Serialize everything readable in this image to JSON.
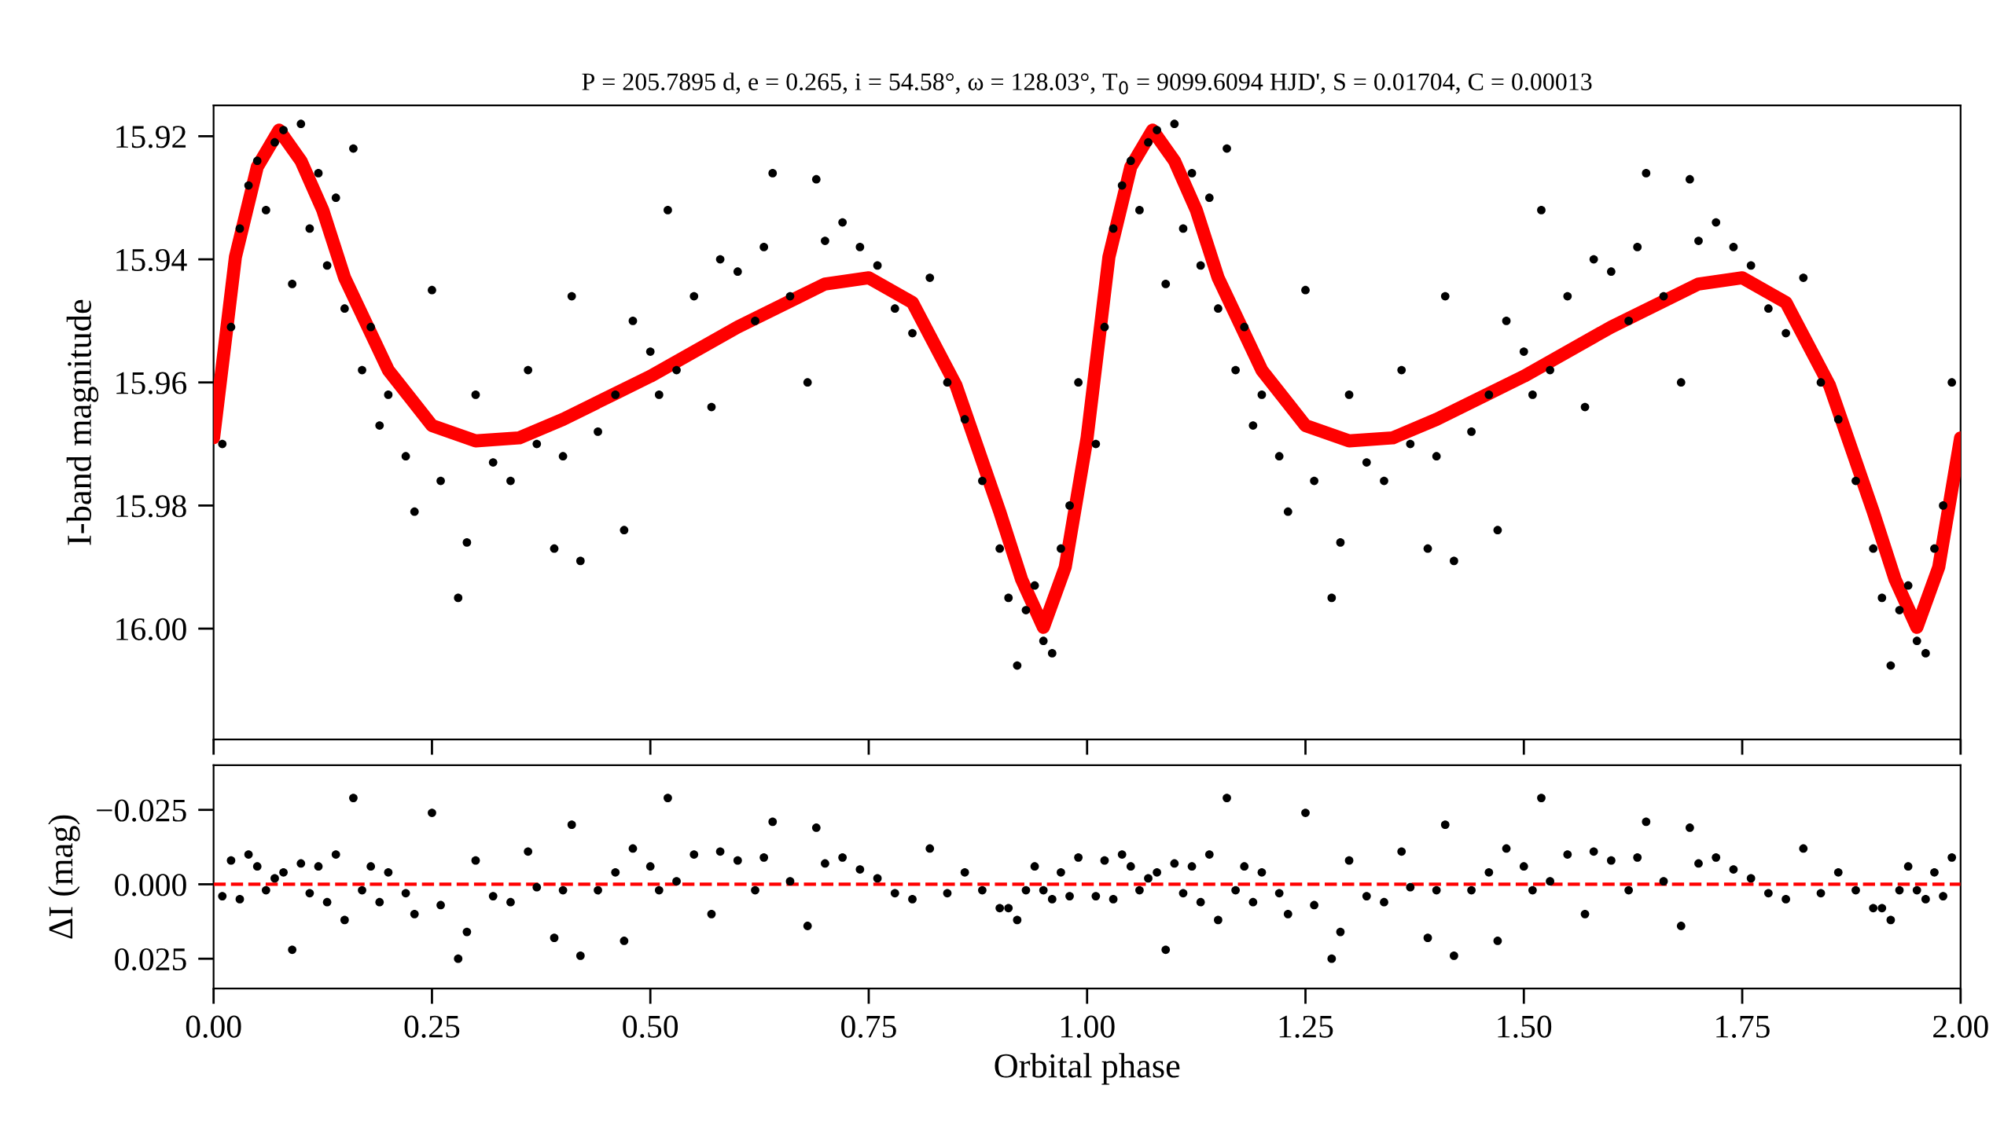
{
  "chart_data": [
    {
      "type": "scatter",
      "title": "P = 205.7895 d, e = 0.265, i = 54.58°, ω = 128.03°, T$_{0}$ = 9099.6094 HJD', S = 0.01704, C = 0.00013",
      "ylabel": "I-band magnitude",
      "tick_labels": "y",
      "xlim": [
        0,
        2
      ],
      "xticks": [
        0,
        0.25,
        0.5,
        0.75,
        1,
        1.25,
        1.5,
        1.75,
        2
      ],
      "ylim": [
        16.018,
        15.915
      ],
      "yticks": [
        15.92,
        15.94,
        15.96,
        15.98,
        {
          "value": 16.0,
          "label": "16.00"
        }
      ],
      "series": [
        {
          "marker": "circle",
          "color": "#000000",
          "x": [
            0.01,
            0.02,
            0.03,
            0.04,
            0.05,
            0.06,
            0.07,
            0.08,
            0.09,
            0.1,
            0.11,
            0.12,
            0.13,
            0.14,
            0.15,
            0.16,
            0.17,
            0.18,
            0.19,
            0.2,
            0.22,
            0.23,
            0.25,
            0.26,
            0.28,
            0.29,
            0.3,
            0.32,
            0.34,
            0.36,
            0.37,
            0.39,
            0.4,
            0.41,
            0.42,
            0.44,
            0.46,
            0.47,
            0.48,
            0.5,
            0.51,
            0.52,
            0.53,
            0.55,
            0.57,
            0.58,
            0.6,
            0.62,
            0.63,
            0.64,
            0.66,
            0.68,
            0.69,
            0.7,
            0.72,
            0.74,
            0.76,
            0.78,
            0.8,
            0.82,
            0.84,
            0.86,
            0.88,
            0.9,
            0.91,
            0.92,
            0.93,
            0.94,
            0.95,
            0.96,
            0.97,
            0.98,
            0.99,
            1.01,
            1.02,
            1.03,
            1.04,
            1.05,
            1.06,
            1.07,
            1.08,
            1.09,
            1.1,
            1.11,
            1.12,
            1.13,
            1.14,
            1.15,
            1.16,
            1.17,
            1.18,
            1.19,
            1.2,
            1.22,
            1.23,
            1.25,
            1.26,
            1.28,
            1.29,
            1.3,
            1.32,
            1.34,
            1.36,
            1.37,
            1.39,
            1.4,
            1.41,
            1.42,
            1.44,
            1.46,
            1.47,
            1.48,
            1.5,
            1.51,
            1.52,
            1.53,
            1.55,
            1.57,
            1.58,
            1.6,
            1.62,
            1.63,
            1.64,
            1.66,
            1.68,
            1.69,
            1.7,
            1.72,
            1.74,
            1.76,
            1.78,
            1.8,
            1.82,
            1.84,
            1.86,
            1.88,
            1.9,
            1.91,
            1.92,
            1.93,
            1.94,
            1.95,
            1.96,
            1.97,
            1.98,
            1.99
          ],
          "values": [
            15.97,
            15.951,
            15.935,
            15.928,
            15.924,
            15.932,
            15.921,
            15.919,
            15.944,
            15.918,
            15.935,
            15.926,
            15.941,
            15.93,
            15.948,
            15.922,
            15.958,
            15.951,
            15.967,
            15.962,
            15.972,
            15.981,
            15.945,
            15.976,
            15.995,
            15.986,
            15.962,
            15.973,
            15.976,
            15.958,
            15.97,
            15.987,
            15.972,
            15.946,
            15.989,
            15.968,
            15.962,
            15.984,
            15.95,
            15.955,
            15.962,
            15.932,
            15.958,
            15.946,
            15.964,
            15.94,
            15.942,
            15.95,
            15.938,
            15.926,
            15.946,
            15.96,
            15.927,
            15.937,
            15.934,
            15.938,
            15.941,
            15.948,
            15.952,
            15.943,
            15.96,
            15.966,
            15.976,
            15.987,
            15.995,
            16.006,
            15.997,
            15.993,
            16.002,
            16.004,
            15.987,
            15.98,
            15.96,
            15.97,
            15.951,
            15.935,
            15.928,
            15.924,
            15.932,
            15.921,
            15.919,
            15.944,
            15.918,
            15.935,
            15.926,
            15.941,
            15.93,
            15.948,
            15.922,
            15.958,
            15.951,
            15.967,
            15.962,
            15.972,
            15.981,
            15.945,
            15.976,
            15.995,
            15.986,
            15.962,
            15.973,
            15.976,
            15.958,
            15.97,
            15.987,
            15.972,
            15.946,
            15.989,
            15.968,
            15.962,
            15.984,
            15.95,
            15.955,
            15.962,
            15.932,
            15.958,
            15.946,
            15.964,
            15.94,
            15.942,
            15.95,
            15.938,
            15.926,
            15.946,
            15.96,
            15.927,
            15.937,
            15.934,
            15.938,
            15.941,
            15.948,
            15.952,
            15.943,
            15.96,
            15.966,
            15.976,
            15.987,
            15.995,
            16.006,
            15.997,
            15.993,
            16.002,
            16.004,
            15.987,
            15.98,
            15.96
          ]
        },
        {
          "type": "line",
          "color": "#ff0000",
          "x": [
            0,
            0.025,
            0.05,
            0.075,
            0.1,
            0.125,
            0.15,
            0.2,
            0.25,
            0.3,
            0.35,
            0.4,
            0.5,
            0.6,
            0.7,
            0.75,
            0.8,
            0.85,
            0.9,
            0.925,
            0.95,
            0.975,
            1,
            1.025,
            1.05,
            1.075,
            1.1,
            1.125,
            1.15,
            1.2,
            1.25,
            1.3,
            1.35,
            1.4,
            1.5,
            1.6,
            1.7,
            1.75,
            1.8,
            1.85,
            1.9,
            1.925,
            1.95,
            1.975,
            2
          ],
          "values": [
            15.969,
            15.9396,
            15.925,
            15.919,
            15.924,
            15.932,
            15.943,
            15.958,
            15.967,
            15.9695,
            15.969,
            15.966,
            15.959,
            15.951,
            15.944,
            15.943,
            15.947,
            15.9605,
            15.981,
            15.992,
            15.9998,
            15.99,
            15.969,
            15.9396,
            15.925,
            15.919,
            15.924,
            15.932,
            15.943,
            15.958,
            15.967,
            15.9695,
            15.969,
            15.966,
            15.959,
            15.951,
            15.944,
            15.943,
            15.947,
            15.9605,
            15.981,
            15.992,
            15.9998,
            15.99,
            15.969
          ]
        }
      ]
    },
    {
      "type": "scatter",
      "xlabel": "Orbital phase",
      "ylabel": "ΔI (mag)",
      "marker": "circle",
      "xlim": [
        0,
        2
      ],
      "xticks": [
        {
          "value": 0,
          "label": "0.00"
        },
        {
          "value": 0.25,
          "label": "0.25"
        },
        {
          "value": 0.5,
          "label": "0.50"
        },
        {
          "value": 0.75,
          "label": "0.75"
        },
        {
          "value": 1,
          "label": "1.00"
        },
        {
          "value": 1.25,
          "label": "1.25"
        },
        {
          "value": 1.5,
          "label": "1.50"
        },
        {
          "value": 1.75,
          "label": "1.75"
        },
        {
          "value": 2,
          "label": "2.00"
        }
      ],
      "ylim": [
        0.035,
        -0.04
      ],
      "yticks": [
        {
          "value": -0.025,
          "label": "−0.025"
        },
        {
          "value": 0,
          "label": "0.000"
        },
        {
          "value": 0.025,
          "label": "0.025"
        }
      ],
      "ref_lines": [
        {
          "axis": "y",
          "value": 0,
          "color": "#ff0000",
          "line_style": "dashed"
        }
      ],
      "series": [
        {
          "color": "#000000",
          "x": [
            0.01,
            0.02,
            0.03,
            0.04,
            0.05,
            0.06,
            0.07,
            0.08,
            0.09,
            0.1,
            0.11,
            0.12,
            0.13,
            0.14,
            0.15,
            0.16,
            0.17,
            0.18,
            0.19,
            0.2,
            0.22,
            0.23,
            0.25,
            0.26,
            0.28,
            0.29,
            0.3,
            0.32,
            0.34,
            0.36,
            0.37,
            0.39,
            0.4,
            0.41,
            0.42,
            0.44,
            0.46,
            0.47,
            0.48,
            0.5,
            0.51,
            0.52,
            0.53,
            0.55,
            0.57,
            0.58,
            0.6,
            0.62,
            0.63,
            0.64,
            0.66,
            0.68,
            0.69,
            0.7,
            0.72,
            0.74,
            0.76,
            0.78,
            0.8,
            0.82,
            0.84,
            0.86,
            0.88,
            0.9,
            0.91,
            0.92,
            0.93,
            0.94,
            0.95,
            0.96,
            0.97,
            0.98,
            0.99,
            1.01,
            1.02,
            1.03,
            1.04,
            1.05,
            1.06,
            1.07,
            1.08,
            1.09,
            1.1,
            1.11,
            1.12,
            1.13,
            1.14,
            1.15,
            1.16,
            1.17,
            1.18,
            1.19,
            1.2,
            1.22,
            1.23,
            1.25,
            1.26,
            1.28,
            1.29,
            1.3,
            1.32,
            1.34,
            1.36,
            1.37,
            1.39,
            1.4,
            1.41,
            1.42,
            1.44,
            1.46,
            1.47,
            1.48,
            1.5,
            1.51,
            1.52,
            1.53,
            1.55,
            1.57,
            1.58,
            1.6,
            1.62,
            1.63,
            1.64,
            1.66,
            1.68,
            1.69,
            1.7,
            1.72,
            1.74,
            1.76,
            1.78,
            1.8,
            1.82,
            1.84,
            1.86,
            1.88,
            1.9,
            1.91,
            1.92,
            1.93,
            1.94,
            1.95,
            1.96,
            1.97,
            1.98,
            1.99
          ],
          "values": [
            0.004,
            -0.008,
            0.005,
            -0.01,
            -0.006,
            0.002,
            -0.002,
            -0.004,
            0.022,
            -0.007,
            0.003,
            -0.006,
            0.006,
            -0.01,
            0.012,
            -0.029,
            0.002,
            -0.006,
            0.006,
            -0.004,
            0.003,
            0.01,
            -0.024,
            0.007,
            0.025,
            0.016,
            -0.008,
            0.004,
            0.006,
            -0.011,
            0.001,
            0.018,
            0.002,
            -0.02,
            0.024,
            0.002,
            -0.004,
            0.019,
            -0.012,
            -0.006,
            0.002,
            -0.029,
            -0.001,
            -0.01,
            0.01,
            -0.011,
            -0.008,
            0.002,
            -0.009,
            -0.021,
            -0.001,
            0.014,
            -0.019,
            -0.007,
            -0.009,
            -0.005,
            -0.002,
            0.003,
            0.005,
            -0.012,
            0.003,
            -0.004,
            0.002,
            0.008,
            0.008,
            0.012,
            0.002,
            -0.006,
            0.002,
            0.005,
            -0.004,
            0.004,
            -0.009,
            0.004,
            -0.008,
            0.005,
            -0.01,
            -0.006,
            0.002,
            -0.002,
            -0.004,
            0.022,
            -0.007,
            0.003,
            -0.006,
            0.006,
            -0.01,
            0.012,
            -0.029,
            0.002,
            -0.006,
            0.006,
            -0.004,
            0.003,
            0.01,
            -0.024,
            0.007,
            0.025,
            0.016,
            -0.008,
            0.004,
            0.006,
            -0.011,
            0.001,
            0.018,
            0.002,
            -0.02,
            0.024,
            0.002,
            -0.004,
            0.019,
            -0.012,
            -0.006,
            0.002,
            -0.029,
            -0.001,
            -0.01,
            0.01,
            -0.011,
            -0.008,
            0.002,
            -0.009,
            -0.021,
            -0.001,
            0.014,
            -0.019,
            -0.007,
            -0.009,
            -0.005,
            -0.002,
            0.003,
            0.005,
            -0.012,
            0.003,
            -0.004,
            0.002,
            0.008,
            0.008,
            0.012,
            0.002,
            -0.006,
            0.002,
            0.005,
            -0.004,
            0.004,
            -0.009
          ]
        }
      ]
    }
  ]
}
